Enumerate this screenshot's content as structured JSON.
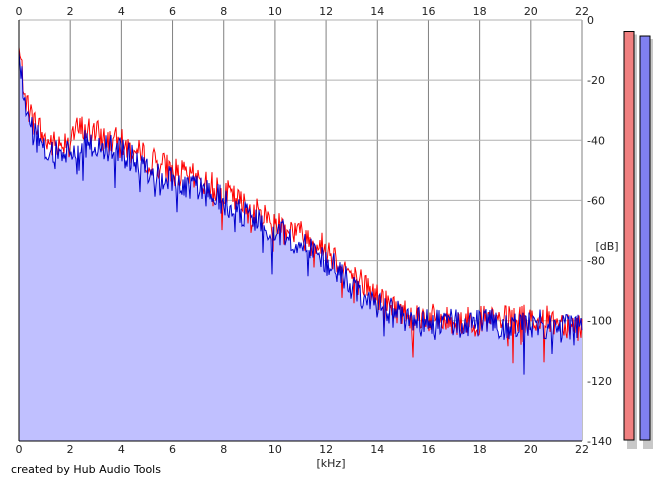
{
  "chart_data": {
    "type": "area",
    "title": "",
    "xlabel": "[kHz]",
    "ylabel": "[dB]",
    "xlim": [
      0,
      22
    ],
    "ylim": [
      -140,
      0
    ],
    "x_ticks": [
      "0",
      "2",
      "4",
      "6",
      "8",
      "10",
      "12",
      "14",
      "16",
      "18",
      "20",
      "22"
    ],
    "y_ticks": [
      "0",
      "-20",
      "-40",
      "-60",
      "-80",
      "-100",
      "-120",
      "-140"
    ],
    "grid": true,
    "legend": "none",
    "x": [
      0,
      0.25,
      0.5,
      0.75,
      1,
      1.5,
      2,
      2.5,
      3,
      3.5,
      4,
      4.5,
      5,
      5.5,
      6,
      6.5,
      7,
      7.5,
      8,
      8.5,
      9,
      9.5,
      10,
      10.5,
      11,
      11.5,
      12,
      12.5,
      13,
      13.5,
      14,
      14.5,
      15,
      15.5,
      16,
      16.5,
      17,
      17.5,
      18,
      18.5,
      19,
      19.5,
      20,
      20.5,
      21,
      21.5,
      22
    ],
    "series": [
      {
        "color": "#ff0000",
        "values": [
          -10,
          -25,
          -33,
          -35,
          -40,
          -42,
          -38,
          -36,
          -38,
          -40,
          -41,
          -44,
          -46,
          -48,
          -50,
          -52,
          -53,
          -55,
          -57,
          -60,
          -63,
          -65,
          -67,
          -69,
          -71,
          -74,
          -76,
          -80,
          -85,
          -88,
          -92,
          -95,
          -97,
          -98,
          -99,
          -100,
          -100,
          -100,
          -100,
          -100,
          -100,
          -100,
          -99,
          -100,
          -100,
          -101,
          -102
        ]
      },
      {
        "color": "#0000cc",
        "values": [
          -12,
          -28,
          -36,
          -40,
          -44,
          -45,
          -43,
          -41,
          -42,
          -43,
          -44,
          -47,
          -50,
          -52,
          -53,
          -55,
          -56,
          -58,
          -60,
          -63,
          -66,
          -68,
          -70,
          -72,
          -74,
          -77,
          -80,
          -84,
          -88,
          -92,
          -95,
          -97,
          -99,
          -100,
          -100,
          -101,
          -101,
          -101,
          -101,
          -101,
          -101,
          -101,
          -101,
          -101,
          -101,
          -102,
          -103
        ]
      }
    ],
    "level_meters": [
      {
        "color": "#f08080",
        "level": -1.5
      },
      {
        "color": "#8080f0",
        "level": -3.0
      }
    ],
    "fill_color": "#c0c0ff"
  },
  "footer": {
    "credit": "created by Hub Audio Tools"
  }
}
